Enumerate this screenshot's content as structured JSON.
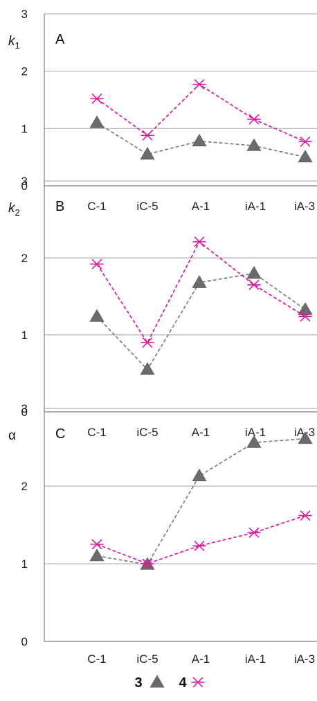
{
  "colors": {
    "series_3": "#6b6b6b",
    "series_3_line": "#7f7f7f",
    "series_4": "#e0189f",
    "grid": "#b5b5b5",
    "axis": "#808080"
  },
  "legend": {
    "items": [
      {
        "label": "3",
        "marker": "triangle"
      },
      {
        "label": "4",
        "marker": "asterisk"
      }
    ]
  },
  "chart_data": [
    {
      "type": "line",
      "panel": "A",
      "ylabel": "k",
      "ylabel_sub": "1",
      "categories": [
        "C-1",
        "iC-5",
        "A-1",
        "iA-1",
        "iA-3"
      ],
      "ylim": [
        0,
        3
      ],
      "yticks": [
        "0",
        "1",
        "2",
        "3"
      ],
      "grid": true,
      "series": [
        {
          "name": "3",
          "values": [
            1.1,
            0.55,
            0.78,
            0.7,
            0.5
          ]
        },
        {
          "name": "4",
          "values": [
            1.52,
            0.88,
            1.77,
            1.16,
            0.77
          ]
        }
      ]
    },
    {
      "type": "line",
      "panel": "B",
      "ylabel": "k",
      "ylabel_sub": "2",
      "categories": [
        "C-1",
        "iC-5",
        "A-1",
        "iA-1",
        "iA-3"
      ],
      "ylim": [
        0,
        3
      ],
      "yticks": [
        "0",
        "1",
        "2",
        "3"
      ],
      "grid": true,
      "series": [
        {
          "name": "3",
          "values": [
            1.24,
            0.55,
            1.68,
            1.8,
            1.33
          ]
        },
        {
          "name": "4",
          "values": [
            1.92,
            0.9,
            2.21,
            1.65,
            1.24
          ]
        }
      ]
    },
    {
      "type": "line",
      "panel": "C",
      "ylabel": "α",
      "ylabel_sub": "",
      "categories": [
        "C-1",
        "iC-5",
        "A-1",
        "iA-1",
        "iA-3"
      ],
      "ylim": [
        0,
        3
      ],
      "yticks": [
        "0",
        "1",
        "2",
        "3"
      ],
      "grid": true,
      "series": [
        {
          "name": "3",
          "values": [
            1.1,
            0.99,
            2.13,
            2.56,
            2.61
          ]
        },
        {
          "name": "4",
          "values": [
            1.25,
            1.0,
            1.23,
            1.4,
            1.62
          ]
        }
      ]
    }
  ]
}
